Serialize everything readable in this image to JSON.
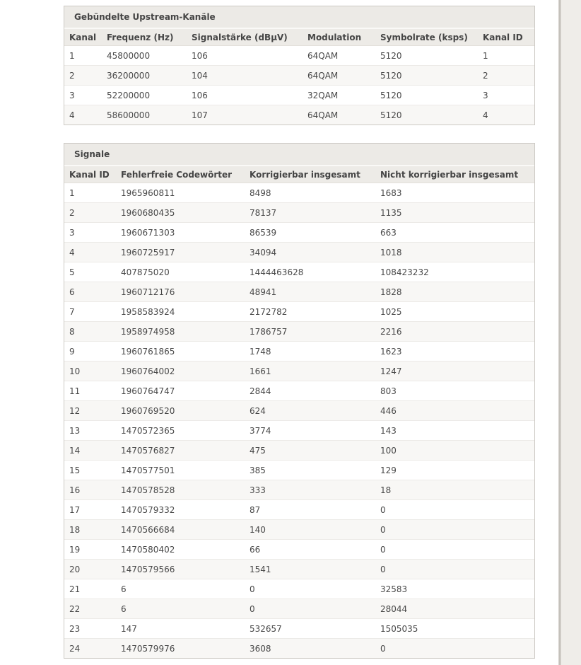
{
  "upstream_table": {
    "title": "Gebündelte Upstream-Kanäle",
    "headers": [
      "Kanal",
      "Frequenz (Hz)",
      "Signalstärke (dBµV)",
      "Modulation",
      "Symbolrate (ksps)",
      "Kanal ID"
    ],
    "rows": [
      [
        "1",
        "45800000",
        "106",
        "64QAM",
        "5120",
        "1"
      ],
      [
        "2",
        "36200000",
        "104",
        "64QAM",
        "5120",
        "2"
      ],
      [
        "3",
        "52200000",
        "106",
        "32QAM",
        "5120",
        "3"
      ],
      [
        "4",
        "58600000",
        "107",
        "64QAM",
        "5120",
        "4"
      ]
    ]
  },
  "signals_table": {
    "title": "Signale",
    "headers": [
      "Kanal ID",
      "Fehlerfreie Codewörter",
      "Korrigierbar insgesamt",
      "Nicht korrigierbar insgesamt"
    ],
    "rows": [
      [
        "1",
        "1965960811",
        "8498",
        "1683"
      ],
      [
        "2",
        "1960680435",
        "78137",
        "1135"
      ],
      [
        "3",
        "1960671303",
        "86539",
        "663"
      ],
      [
        "4",
        "1960725917",
        "34094",
        "1018"
      ],
      [
        "5",
        "407875020",
        "1444463628",
        "108423232"
      ],
      [
        "6",
        "1960712176",
        "48941",
        "1828"
      ],
      [
        "7",
        "1958583924",
        "2172782",
        "1025"
      ],
      [
        "8",
        "1958974958",
        "1786757",
        "2216"
      ],
      [
        "9",
        "1960761865",
        "1748",
        "1623"
      ],
      [
        "10",
        "1960764002",
        "1661",
        "1247"
      ],
      [
        "11",
        "1960764747",
        "2844",
        "803"
      ],
      [
        "12",
        "1960769520",
        "624",
        "446"
      ],
      [
        "13",
        "1470572365",
        "3774",
        "143"
      ],
      [
        "14",
        "1470576827",
        "475",
        "100"
      ],
      [
        "15",
        "1470577501",
        "385",
        "129"
      ],
      [
        "16",
        "1470578528",
        "333",
        "18"
      ],
      [
        "17",
        "1470579332",
        "87",
        "0"
      ],
      [
        "18",
        "1470566684",
        "140",
        "0"
      ],
      [
        "19",
        "1470580402",
        "66",
        "0"
      ],
      [
        "20",
        "1470579566",
        "1541",
        "0"
      ],
      [
        "21",
        "6",
        "0",
        "32583"
      ],
      [
        "22",
        "6",
        "0",
        "28044"
      ],
      [
        "23",
        "147",
        "532657",
        "1505035"
      ],
      [
        "24",
        "1470579976",
        "3608",
        "0"
      ]
    ]
  },
  "colors": {
    "page_strip": "#efede9",
    "panel_border": "#ccc9c4",
    "title_bar_bg": "#eceae6",
    "header_row_bg": "#edebe7",
    "alt_row_bg": "#f8f7f5",
    "text": "#484848"
  }
}
